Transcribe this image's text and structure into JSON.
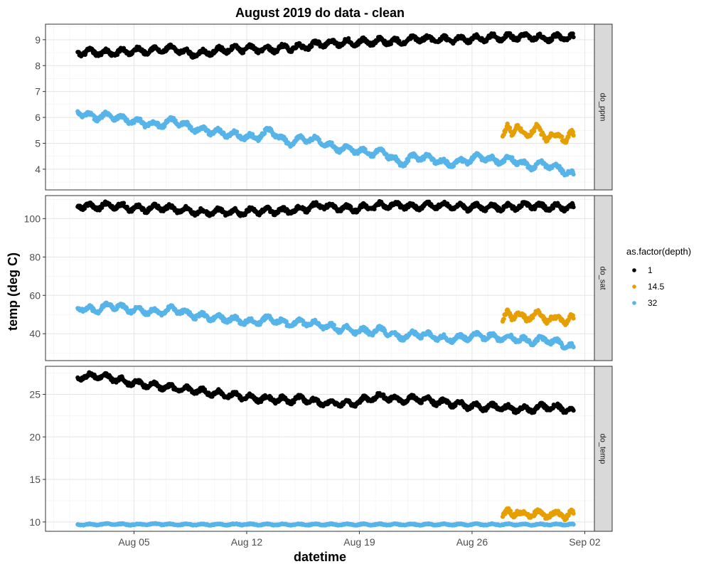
{
  "chart_data": {
    "type": "scatter",
    "title": "August 2019 do data - clean",
    "xlabel": "datetime",
    "ylabel": "temp (deg C)",
    "x_ticks": [
      "Aug 05",
      "Aug 12",
      "Aug 19",
      "Aug 26",
      "Sep 02"
    ],
    "x_tick_days": [
      5,
      12,
      19,
      26,
      33
    ],
    "xlim_days": [
      -0.5,
      33.6
    ],
    "legend": {
      "title": "as.factor(depth)",
      "placement": "right",
      "entries": [
        {
          "label": "1",
          "color": "#000000"
        },
        {
          "label": "14.5",
          "color": "#E69F00"
        },
        {
          "label": "32",
          "color": "#56B4E9"
        }
      ]
    },
    "grid": true,
    "facets": [
      {
        "strip": "do_ppm",
        "ylim": [
          3.2,
          9.6
        ],
        "y_ticks": [
          4,
          5,
          6,
          7,
          8,
          9
        ],
        "series": [
          {
            "depth": "1",
            "color": "#000000",
            "x": [
              1.5,
              2.5,
              3.5,
              4.5,
              5.5,
              6.5,
              7.5,
              8.5,
              9.5,
              10.5,
              11.5,
              12.5,
              13.5,
              14.5,
              15.5,
              16.5,
              17.5,
              18.5,
              19.5,
              20.5,
              21.5,
              22.5,
              23.5,
              24.5,
              25.5,
              26.5,
              27.5,
              28.5,
              29.5,
              30.5,
              31.5,
              32.3
            ],
            "y": [
              8.5,
              8.52,
              8.48,
              8.55,
              8.58,
              8.6,
              8.65,
              8.45,
              8.5,
              8.62,
              8.65,
              8.66,
              8.62,
              8.7,
              8.7,
              8.85,
              8.88,
              8.9,
              8.92,
              8.95,
              8.9,
              9.05,
              9.02,
              9.0,
              9.02,
              9.05,
              9.1,
              9.1,
              9.12,
              9.05,
              9.1,
              9.1
            ]
          },
          {
            "depth": "14.5",
            "color": "#E69F00",
            "x": [
              27.9,
              28.2,
              28.5,
              28.8,
              29.1,
              29.4,
              29.7,
              30.0,
              30.3,
              30.6,
              30.9,
              31.2,
              31.5,
              31.8,
              32.1,
              32.3
            ],
            "y": [
              5.3,
              5.6,
              5.3,
              5.8,
              5.4,
              5.2,
              5.5,
              5.7,
              5.3,
              5.2,
              5.4,
              5.2,
              5.3,
              5.1,
              5.4,
              5.3
            ]
          },
          {
            "depth": "32",
            "color": "#56B4E9",
            "x": [
              1.5,
              2.5,
              3.5,
              4.5,
              5.5,
              6.5,
              7.5,
              8.5,
              9.5,
              10.5,
              11.5,
              12.5,
              13.5,
              14.5,
              15.5,
              16.5,
              17.5,
              18.5,
              19.5,
              20.5,
              21.5,
              22.5,
              23.5,
              24.5,
              25.5,
              26.5,
              27.5,
              28.5,
              29.5,
              30.5,
              31.5,
              32.3
            ],
            "y": [
              6.2,
              6.0,
              6.1,
              5.9,
              5.8,
              5.7,
              5.9,
              5.6,
              5.5,
              5.4,
              5.3,
              5.2,
              5.5,
              5.0,
              5.2,
              5.1,
              4.8,
              4.8,
              4.6,
              4.7,
              4.2,
              4.5,
              4.4,
              4.2,
              4.3,
              4.5,
              4.3,
              4.4,
              4.1,
              4.2,
              4.0,
              3.8
            ]
          }
        ]
      },
      {
        "strip": "do_sat",
        "ylim": [
          26,
          112
        ],
        "y_ticks": [
          40,
          60,
          80,
          100
        ],
        "series": [
          {
            "depth": "1",
            "color": "#000000",
            "x": [
              1.5,
              2.5,
              3.5,
              4.5,
              5.5,
              6.5,
              7.5,
              8.5,
              9.5,
              10.5,
              11.5,
              12.5,
              13.5,
              14.5,
              15.5,
              16.5,
              17.5,
              18.5,
              19.5,
              20.5,
              21.5,
              22.5,
              23.5,
              24.5,
              25.5,
              26.5,
              27.5,
              28.5,
              29.5,
              30.5,
              31.5,
              32.3
            ],
            "y": [
              107,
              106,
              107,
              106,
              105,
              106,
              105,
              104,
              103,
              104,
              103,
              104,
              104,
              104,
              105,
              107,
              106,
              105,
              106,
              107,
              107,
              106,
              107,
              107,
              106,
              106,
              106,
              106,
              107,
              106,
              106,
              106
            ]
          },
          {
            "depth": "14.5",
            "color": "#E69F00",
            "x": [
              27.9,
              28.2,
              28.5,
              28.8,
              29.1,
              29.4,
              29.7,
              30.0,
              30.3,
              30.6,
              30.9,
              31.2,
              31.5,
              31.8,
              32.1,
              32.3
            ],
            "y": [
              48,
              51,
              47,
              52,
              49,
              46,
              50,
              52,
              48,
              47,
              49,
              47,
              48,
              46,
              49,
              48
            ]
          },
          {
            "depth": "32",
            "color": "#56B4E9",
            "x": [
              1.5,
              2.5,
              3.5,
              4.5,
              5.5,
              6.5,
              7.5,
              8.5,
              9.5,
              10.5,
              11.5,
              12.5,
              13.5,
              14.5,
              15.5,
              16.5,
              17.5,
              18.5,
              19.5,
              20.5,
              21.5,
              22.5,
              23.5,
              24.5,
              25.5,
              26.5,
              27.5,
              28.5,
              29.5,
              30.5,
              31.5,
              32.3
            ],
            "y": [
              54,
              52,
              55,
              53,
              52,
              51,
              53,
              50,
              49,
              48,
              47,
              46,
              48,
              45,
              46,
              45,
              43,
              42,
              41,
              42,
              38,
              40,
              39,
              37,
              38,
              39,
              38,
              38,
              36,
              37,
              35,
              33
            ]
          }
        ]
      },
      {
        "strip": "do_temp",
        "ylim": [
          8.9,
          28.3
        ],
        "y_ticks": [
          10,
          15,
          20,
          25
        ],
        "series": [
          {
            "depth": "1",
            "color": "#000000",
            "x": [
              1.5,
              2.5,
              3.5,
              4.5,
              5.5,
              6.5,
              7.5,
              8.5,
              9.5,
              10.5,
              11.5,
              12.5,
              13.5,
              14.5,
              15.5,
              16.5,
              17.5,
              18.5,
              19.5,
              20.5,
              21.5,
              22.5,
              23.5,
              24.5,
              25.5,
              26.5,
              27.5,
              28.5,
              29.5,
              30.5,
              31.5,
              32.3
            ],
            "y": [
              27.0,
              27.2,
              27.0,
              26.5,
              26.2,
              26.0,
              25.7,
              25.5,
              25.3,
              25.0,
              24.8,
              24.5,
              24.5,
              24.3,
              24.5,
              24.0,
              24.0,
              23.8,
              24.5,
              24.8,
              24.3,
              24.5,
              24.2,
              24.0,
              23.7,
              23.5,
              23.5,
              23.3,
              23.2,
              23.6,
              23.4,
              23.1
            ]
          },
          {
            "depth": "14.5",
            "color": "#E69F00",
            "x": [
              27.9,
              28.2,
              28.5,
              28.8,
              29.1,
              29.4,
              29.7,
              30.0,
              30.3,
              30.6,
              30.9,
              31.2,
              31.5,
              31.8,
              32.1,
              32.3
            ],
            "y": [
              10.8,
              11.2,
              10.7,
              11.4,
              10.9,
              10.6,
              11.0,
              11.3,
              10.8,
              10.7,
              11.0,
              10.8,
              10.9,
              10.7,
              11.1,
              11.0
            ]
          },
          {
            "depth": "32",
            "color": "#56B4E9",
            "x": [
              1.5,
              2.5,
              3.5,
              4.5,
              5.5,
              6.5,
              7.5,
              8.5,
              9.5,
              10.5,
              11.5,
              12.5,
              13.5,
              14.5,
              15.5,
              16.5,
              17.5,
              18.5,
              19.5,
              20.5,
              21.5,
              22.5,
              23.5,
              24.5,
              25.5,
              26.5,
              27.5,
              28.5,
              29.5,
              30.5,
              31.5,
              32.3
            ],
            "y": [
              9.7,
              9.7,
              9.75,
              9.7,
              9.7,
              9.75,
              9.7,
              9.7,
              9.7,
              9.7,
              9.72,
              9.7,
              9.7,
              9.7,
              9.7,
              9.7,
              9.7,
              9.7,
              9.7,
              9.7,
              9.7,
              9.7,
              9.7,
              9.7,
              9.7,
              9.7,
              9.7,
              9.7,
              9.7,
              9.7,
              9.7,
              9.7
            ]
          }
        ]
      }
    ]
  }
}
